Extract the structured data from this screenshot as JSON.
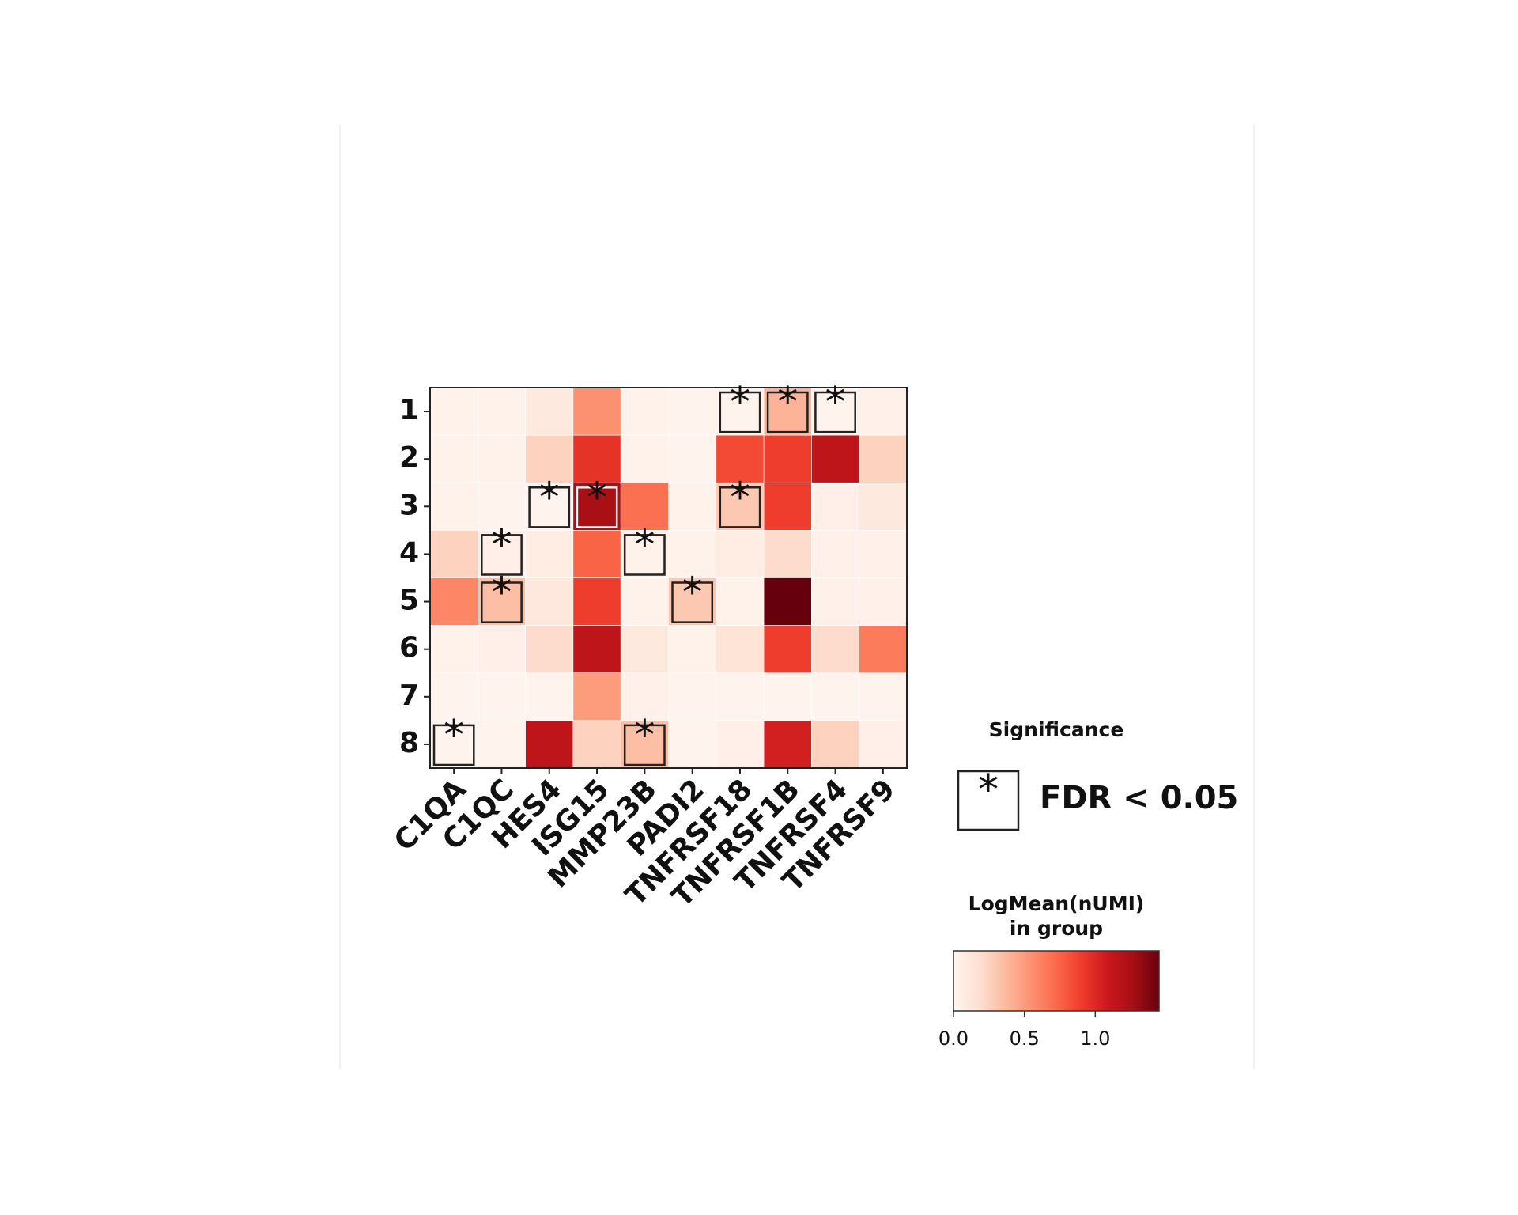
{
  "chart_data": {
    "type": "heatmap",
    "columns": [
      "C1QA",
      "C1QC",
      "HES4",
      "ISG15",
      "MMP23B",
      "PADI2",
      "TNFRSF18",
      "TNFRSF1B",
      "TNFRSF4",
      "TNFRSF9"
    ],
    "rows": [
      "1",
      "2",
      "3",
      "4",
      "5",
      "6",
      "7",
      "8"
    ],
    "values": [
      [
        0.03,
        0.03,
        0.1,
        0.55,
        0.03,
        0.02,
        0.02,
        0.4,
        0.02,
        0.04
      ],
      [
        0.03,
        0.03,
        0.25,
        0.95,
        0.03,
        0.02,
        0.85,
        0.9,
        1.15,
        0.25
      ],
      [
        0.03,
        0.02,
        0.02,
        1.25,
        0.7,
        0.03,
        0.3,
        0.9,
        0.05,
        0.1
      ],
      [
        0.25,
        0.05,
        0.08,
        0.75,
        0.03,
        0.03,
        0.08,
        0.2,
        0.04,
        0.04
      ],
      [
        0.6,
        0.35,
        0.12,
        0.9,
        0.03,
        0.3,
        0.03,
        1.45,
        0.04,
        0.04
      ],
      [
        0.03,
        0.05,
        0.2,
        1.15,
        0.1,
        0.03,
        0.15,
        0.9,
        0.2,
        0.65
      ],
      [
        0.02,
        0.02,
        0.02,
        0.5,
        0.04,
        0.02,
        0.02,
        0.02,
        0.02,
        0.02
      ],
      [
        0.02,
        0.02,
        1.15,
        0.25,
        0.35,
        0.02,
        0.05,
        1.05,
        0.25,
        0.05
      ]
    ],
    "colormap": "Reds",
    "significance": {
      "title": "Significance",
      "marker": "*",
      "label": "FDR < 0.05",
      "cells": [
        [
          0,
          6
        ],
        [
          0,
          7
        ],
        [
          0,
          8
        ],
        [
          2,
          2
        ],
        [
          2,
          3
        ],
        [
          2,
          6
        ],
        [
          3,
          1
        ],
        [
          3,
          4
        ],
        [
          4,
          1
        ],
        [
          4,
          5
        ],
        [
          7,
          0
        ],
        [
          7,
          4
        ]
      ]
    },
    "colorbar_label": [
      "LogMean(nUMI)",
      "in group"
    ],
    "clim": [
      0,
      1.45
    ],
    "cticks": [
      {
        "value": 0,
        "label": "0.0"
      },
      {
        "value": 0.5,
        "label": "0.5"
      },
      {
        "value": 1,
        "label": "1.0"
      }
    ]
  }
}
